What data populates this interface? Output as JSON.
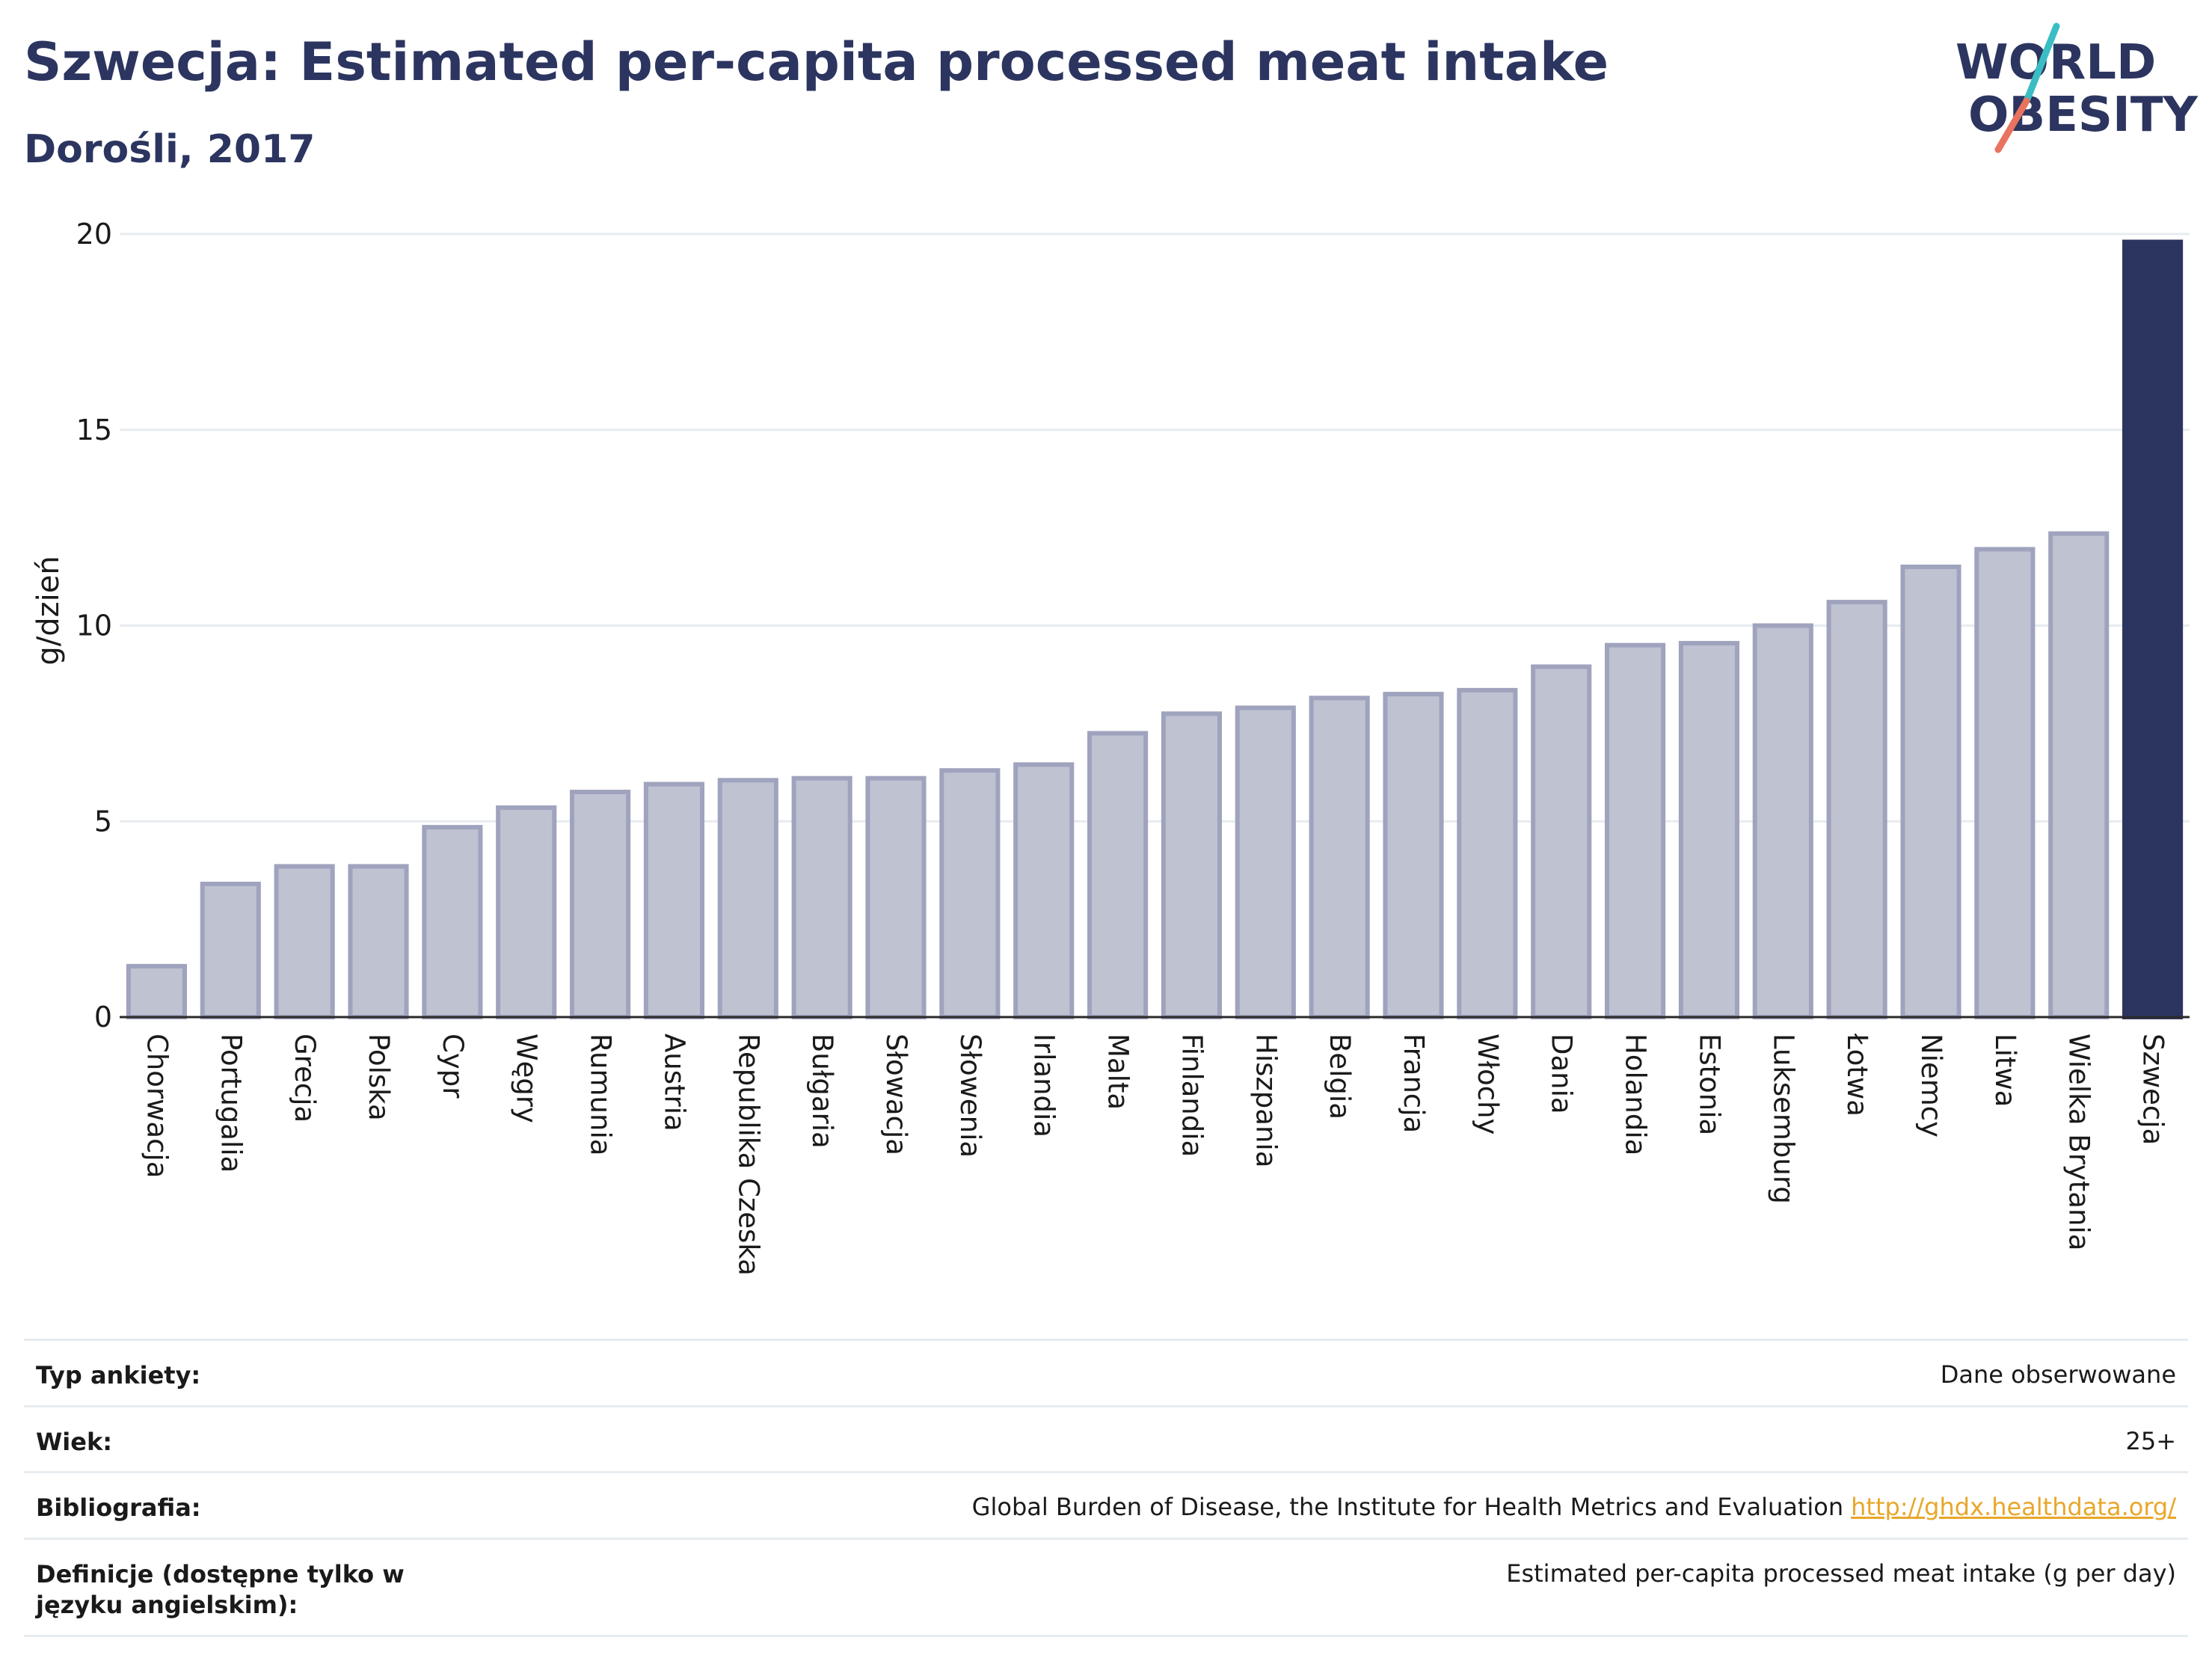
{
  "header": {
    "title": "Szwecja: Estimated per-capita processed meat intake",
    "subtitle": "Dorośli, 2017"
  },
  "logo": {
    "line1": "WORLD",
    "line2": "OBESITY",
    "colors": {
      "navy": "#2c3560",
      "teal": "#3bbdc4",
      "coral": "#e8735f"
    }
  },
  "colors": {
    "bar_default": "#bfc2d1",
    "bar_default_border": "#9fa3bd",
    "bar_highlight": "#2c3560",
    "grid": "#e6ecf0"
  },
  "chart_data": {
    "type": "bar",
    "title": "Szwecja: Estimated per-capita processed meat intake",
    "ylabel": "g/dzień",
    "xlabel": "",
    "ylim": [
      0,
      20
    ],
    "yticks": [
      0,
      5,
      10,
      15,
      20
    ],
    "grid": true,
    "highlight": "Szwecja",
    "categories": [
      "Chorwacja",
      "Portugalia",
      "Grecja",
      "Polska",
      "Cypr",
      "Węgry",
      "Rumunia",
      "Austria",
      "Republika Czeska",
      "Bułgaria",
      "Słowacja",
      "Słowenia",
      "Irlandia",
      "Malta",
      "Finlandia",
      "Hiszpania",
      "Belgia",
      "Francja",
      "Włochy",
      "Dania",
      "Holandia",
      "Estonia",
      "Luksemburg",
      "Łotwa",
      "Niemcy",
      "Litwa",
      "Wielka Brytania",
      "Szwecja"
    ],
    "values": [
      1.3,
      3.4,
      3.85,
      3.85,
      4.85,
      5.35,
      5.75,
      5.95,
      6.05,
      6.1,
      6.1,
      6.3,
      6.45,
      7.25,
      7.75,
      7.9,
      8.15,
      8.25,
      8.35,
      8.95,
      9.5,
      9.55,
      10.0,
      10.6,
      11.5,
      11.95,
      12.35,
      19.8
    ]
  },
  "info": [
    {
      "key": "Typ ankiety:",
      "value": "Dane obserwowane",
      "link": ""
    },
    {
      "key": "Wiek:",
      "value": "25+",
      "link": ""
    },
    {
      "key": "Bibliografia:",
      "value": "Global Burden of Disease, the Institute for Health Metrics and Evaluation",
      "link": "http://ghdx.healthdata.org/"
    },
    {
      "key": "Definicje (dostępne tylko w języku angielskim):",
      "value": "Estimated per-capita processed meat intake (g per day)",
      "link": ""
    }
  ]
}
